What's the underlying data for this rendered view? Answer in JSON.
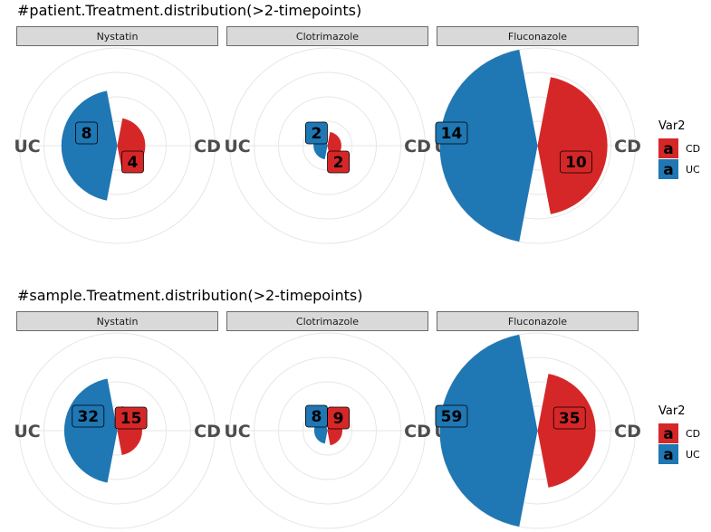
{
  "colors": {
    "CD": "#d62728",
    "UC": "#1f77b4",
    "strip_bg": "#d9d9d9",
    "grid": "#e6e6e6"
  },
  "legend": {
    "title": "Var2",
    "key_glyph": "a",
    "entries": [
      "CD",
      "UC"
    ]
  },
  "axis_labels": {
    "left": "UC",
    "right": "CD"
  },
  "chart_data": [
    {
      "type": "polar-bar",
      "title": "#patient.Treatment.distribution(>2-timepoints)",
      "facets": [
        {
          "name": "Nystatin",
          "values": {
            "UC": 8,
            "CD": 4
          }
        },
        {
          "name": "Clotrimazole",
          "values": {
            "UC": 2,
            "CD": 2
          }
        },
        {
          "name": "Fluconazole",
          "values": {
            "UC": 14,
            "CD": 10
          }
        }
      ],
      "categories": [
        "UC",
        "CD"
      ],
      "rmax": 14
    },
    {
      "type": "polar-bar",
      "title": "#sample.Treatment.distribution(>2-timepoints)",
      "facets": [
        {
          "name": "Nystatin",
          "values": {
            "UC": 32,
            "CD": 15
          }
        },
        {
          "name": "Clotrimazole",
          "values": {
            "UC": 8,
            "CD": 9
          }
        },
        {
          "name": "Fluconazole",
          "values": {
            "UC": 59,
            "CD": 35
          }
        }
      ],
      "categories": [
        "UC",
        "CD"
      ],
      "rmax": 59
    }
  ]
}
